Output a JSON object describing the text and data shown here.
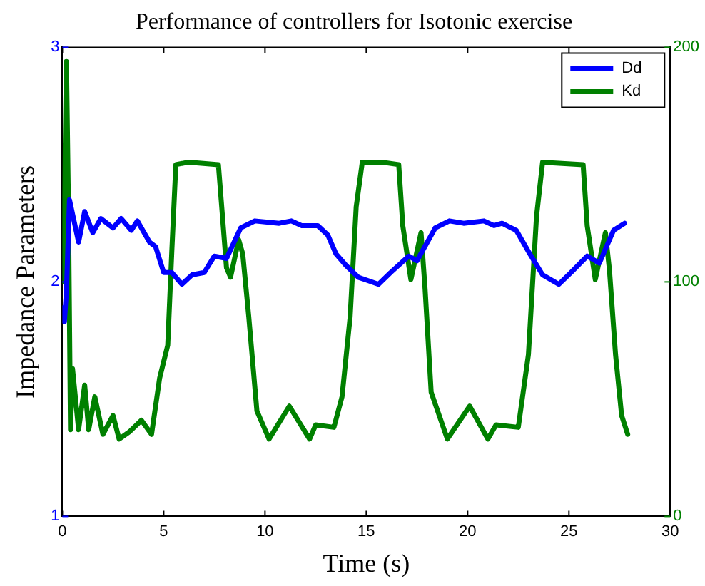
{
  "chart_data": {
    "type": "line",
    "title": "Performance of controllers for Isotonic exercise",
    "xlabel": "Time (s)",
    "ylabel": "Impedance Parameters",
    "xlim": [
      0,
      30
    ],
    "xticks": [
      0,
      5,
      10,
      15,
      20,
      25,
      30
    ],
    "ylim": [
      1,
      3
    ],
    "yticks": [
      1,
      2,
      3
    ],
    "y2lim": [
      0,
      200
    ],
    "y2ticks": [
      0,
      100,
      200
    ],
    "grid": false,
    "legend": "top right",
    "marker": "none",
    "line_style": "solid",
    "series": [
      {
        "name": "Dd",
        "color": "#0000ff",
        "x": [
          0.05,
          0.1,
          0.2,
          0.35,
          0.8,
          1.1,
          1.5,
          1.9,
          2.5,
          2.9,
          3.4,
          3.7,
          4.3,
          4.6,
          5.0,
          5.4,
          5.9,
          6.4,
          7.0,
          7.5,
          8.1,
          8.8,
          9.5,
          10.7,
          11.3,
          11.8,
          12.6,
          13.1,
          13.5,
          14.0,
          14.6,
          15.6,
          16.2,
          17.1,
          17.5,
          18.4,
          19.1,
          19.8,
          20.8,
          21.3,
          21.7,
          22.4,
          23.0,
          23.7,
          24.5,
          25.1,
          25.9,
          26.5,
          27.2,
          27.75
        ],
        "values": [
          1.89,
          1.83,
          1.96,
          2.35,
          2.17,
          2.3,
          2.21,
          2.27,
          2.23,
          2.27,
          2.22,
          2.26,
          2.17,
          2.15,
          2.04,
          2.04,
          1.99,
          2.03,
          2.04,
          2.11,
          2.1,
          2.23,
          2.26,
          2.25,
          2.26,
          2.24,
          2.24,
          2.2,
          2.12,
          2.07,
          2.02,
          1.99,
          2.04,
          2.11,
          2.09,
          2.23,
          2.26,
          2.25,
          2.26,
          2.24,
          2.25,
          2.22,
          2.13,
          2.03,
          1.99,
          2.04,
          2.11,
          2.08,
          2.22,
          2.25
        ]
      },
      {
        "name": "Kd",
        "color": "#008000",
        "axis": "y2",
        "x": [
          0.05,
          0.2,
          0.3,
          0.4,
          0.5,
          0.8,
          1.1,
          1.3,
          1.6,
          2.0,
          2.5,
          2.8,
          3.3,
          3.9,
          4.4,
          4.8,
          5.2,
          5.4,
          5.6,
          6.2,
          7.7,
          7.9,
          8.1,
          8.3,
          8.7,
          8.9,
          9.2,
          9.6,
          10.2,
          11.2,
          12.2,
          12.5,
          13.4,
          13.8,
          14.2,
          14.5,
          14.8,
          15.8,
          16.6,
          16.8,
          17.2,
          17.7,
          17.9,
          18.2,
          19.0,
          20.1,
          21.0,
          21.4,
          22.5,
          23.0,
          23.4,
          23.7,
          25.7,
          25.9,
          26.3,
          26.8,
          27.0,
          27.3,
          27.6,
          27.9
        ],
        "values": [
          100,
          194,
          131,
          37,
          63,
          37,
          56,
          37,
          51,
          35,
          43,
          33,
          36,
          41,
          35,
          59,
          73,
          113,
          150,
          151,
          150,
          128,
          106,
          102,
          118,
          112,
          85,
          45,
          33,
          47,
          33,
          39,
          38,
          51,
          85,
          132,
          151,
          151,
          150,
          124,
          101,
          121,
          97,
          53,
          33,
          47,
          33,
          39,
          38,
          69,
          128,
          151,
          150,
          124,
          101,
          121,
          105,
          69,
          43,
          35
        ]
      }
    ]
  }
}
